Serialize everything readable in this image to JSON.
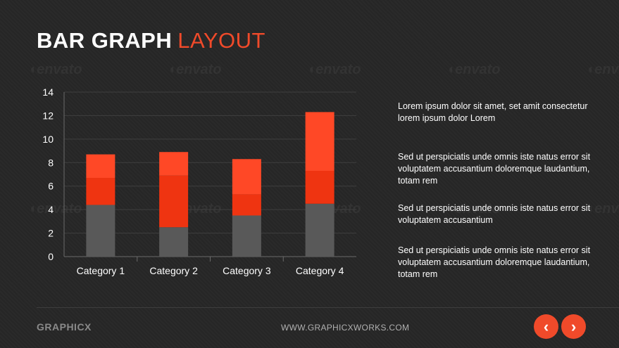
{
  "slide": {
    "title_bold": "BAR GRAPH",
    "title_accent": "LAYOUT",
    "accent_color": "#f04a2a"
  },
  "chart_data": {
    "type": "bar",
    "stacked": true,
    "categories": [
      "Category 1",
      "Category 2",
      "Category 3",
      "Category 4"
    ],
    "series": [
      {
        "values": [
          4.4,
          2.5,
          3.5,
          4.5
        ],
        "color": "#595959"
      },
      {
        "values": [
          2.3,
          4.4,
          1.8,
          2.8
        ],
        "color": "#ef3411"
      },
      {
        "values": [
          2.0,
          2.0,
          3.0,
          5.0
        ],
        "color": "#ff4826"
      }
    ],
    "ylim": [
      0,
      14
    ],
    "yticks": [
      0,
      2,
      4,
      6,
      8,
      10,
      12,
      14
    ],
    "grid": true
  },
  "paragraphs": [
    "Lorem ipsum dolor sit amet, set amit consectetur lorem ipsum dolor  Lorem",
    "Sed ut perspiciatis unde omnis iste natus error sit voluptatem accusantium doloremque laudantium, totam rem",
    "Sed ut perspiciatis unde omnis iste natus error sit voluptatem accusantium",
    "Sed ut perspiciatis unde omnis iste natus error sit voluptatem accusantium doloremque laudantium, totam rem"
  ],
  "watermark": {
    "text": "envato"
  },
  "footer": {
    "brand": "GRAPHICX",
    "website": "WWW.GRAPHICXWORKS.COM",
    "prev_icon": "chevron-left-icon",
    "next_icon": "chevron-right-icon"
  }
}
